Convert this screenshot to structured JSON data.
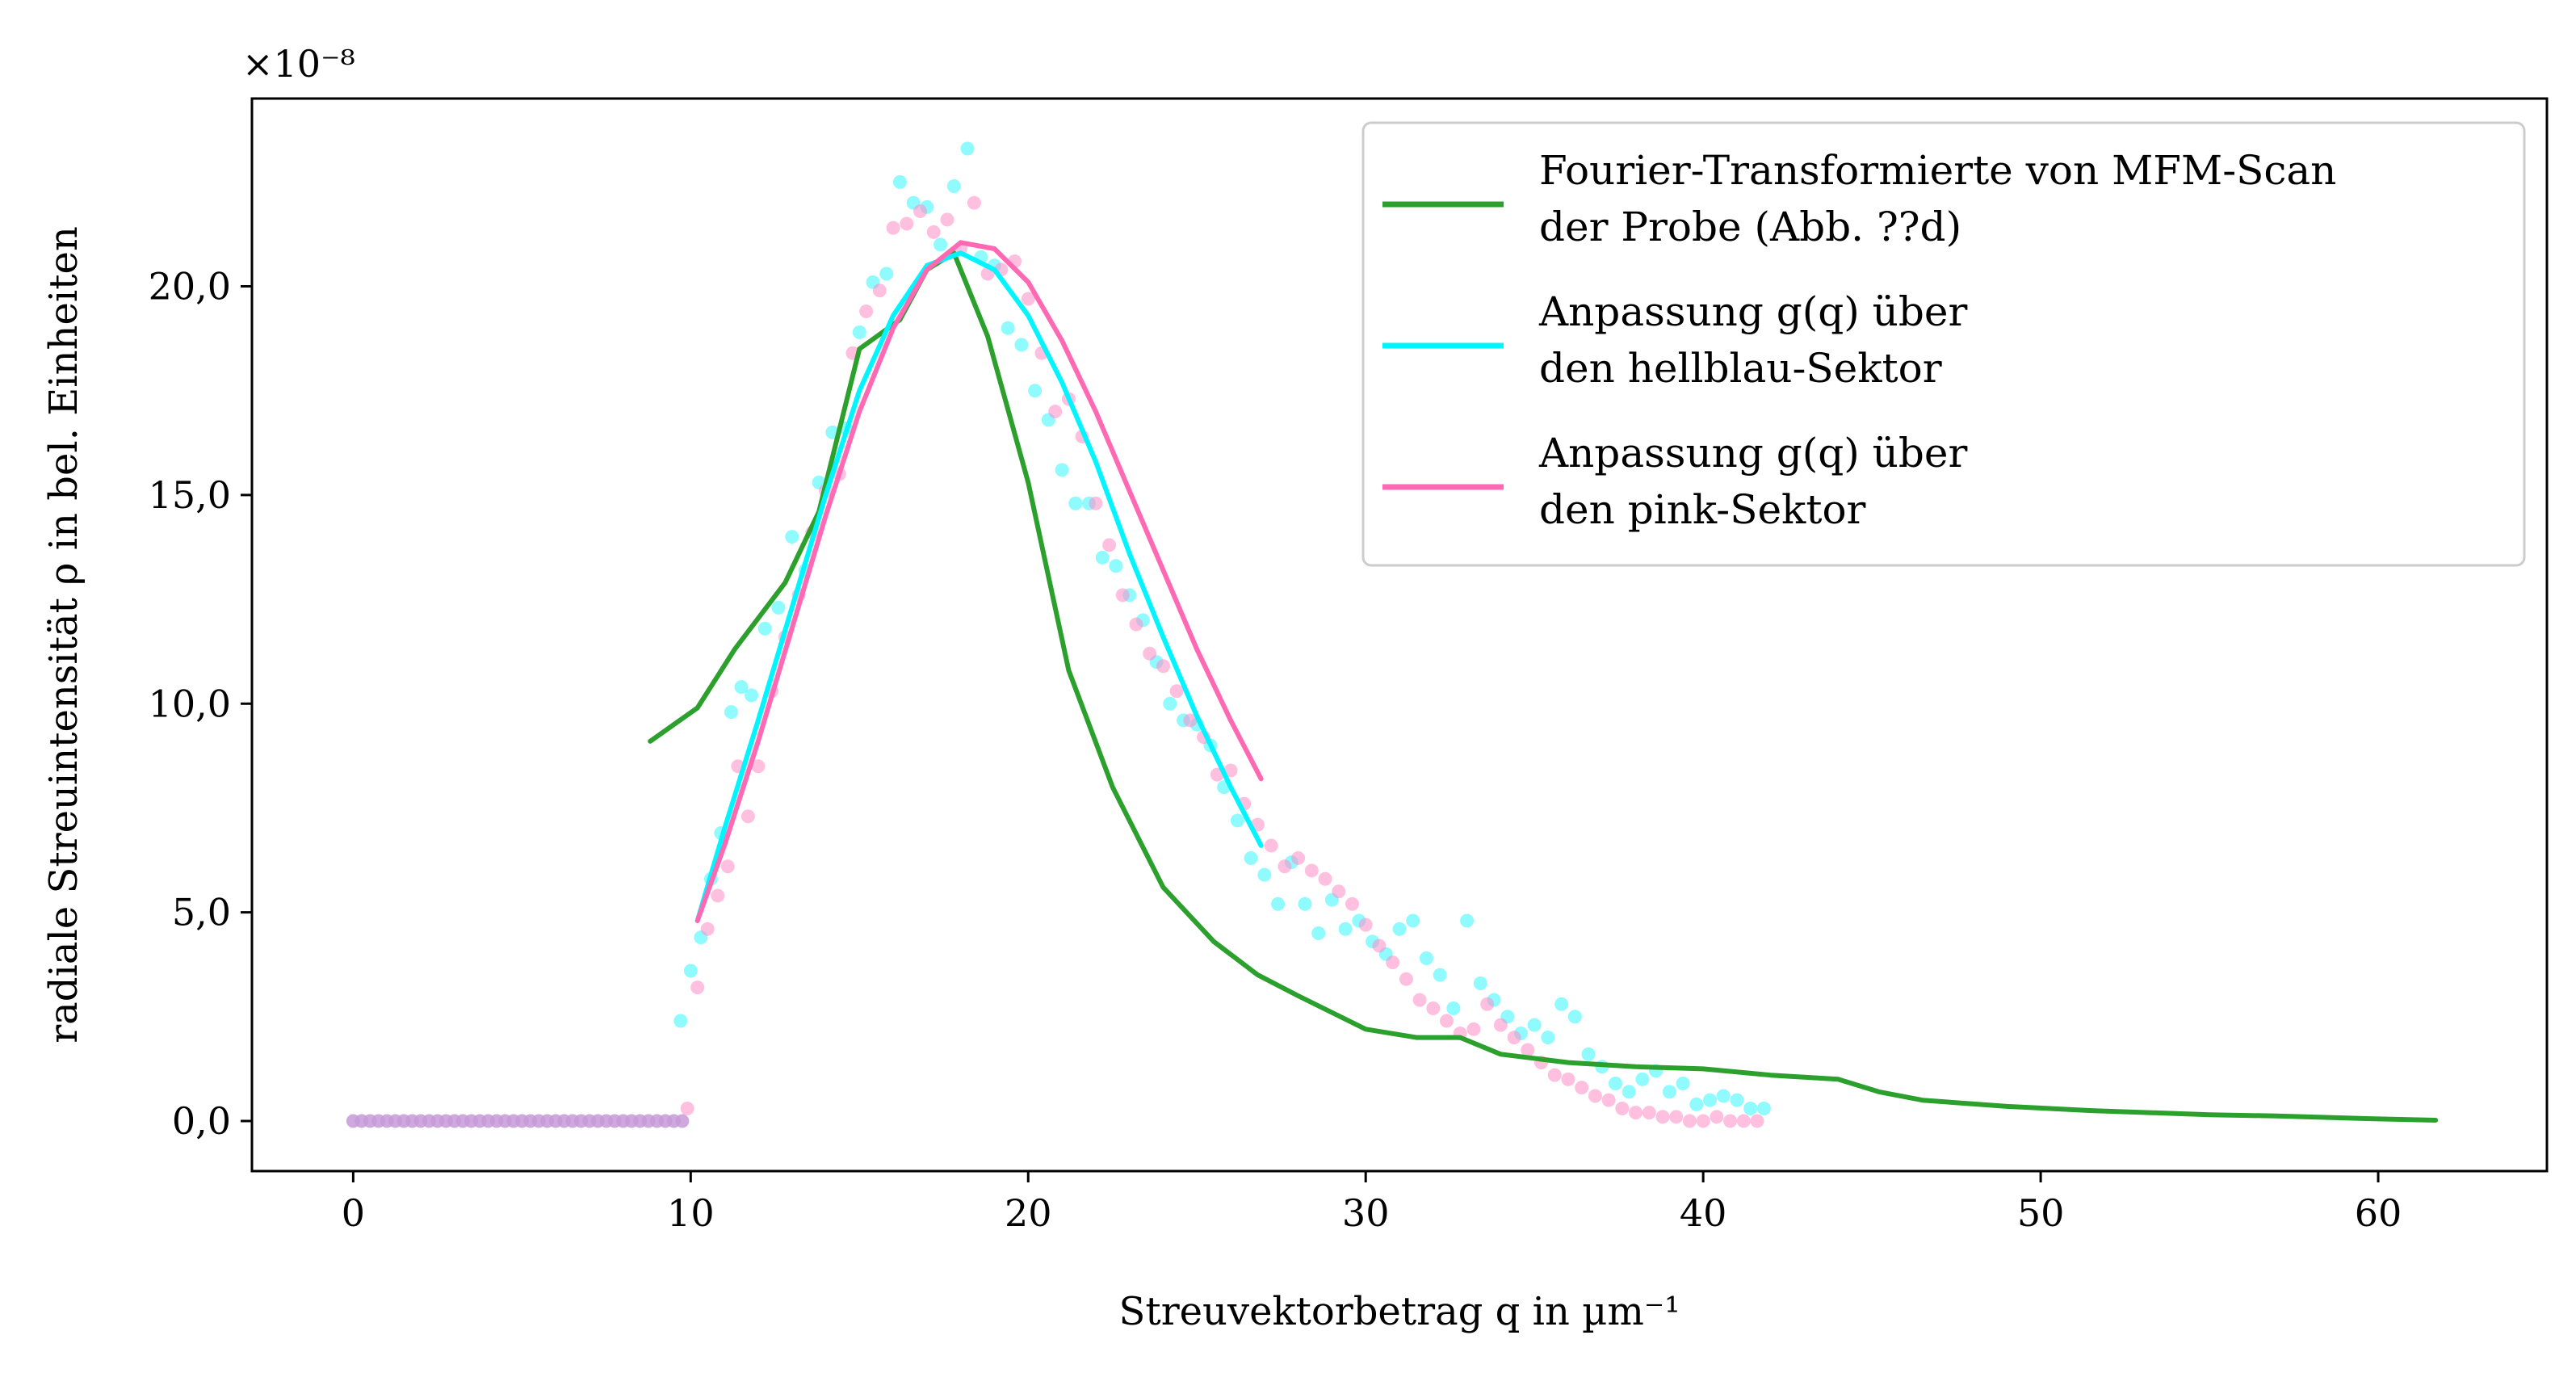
{
  "chart_data": {
    "type": "scatter",
    "xlabel": "Streuvektorbetrag q in µm⁻¹",
    "ylabel": "radiale Streuintensität ρ in bel. Einheiten",
    "y_multiplier_label": "×10⁻⁸",
    "xlim": [
      -3,
      65
    ],
    "ylim": [
      -1.2,
      24.5
    ],
    "x_ticks": [
      0,
      10,
      20,
      30,
      40,
      50,
      60
    ],
    "x_tick_labels": [
      "0",
      "10",
      "20",
      "30",
      "40",
      "50",
      "60"
    ],
    "y_ticks": [
      0,
      5,
      10,
      15,
      20
    ],
    "y_tick_labels": [
      "0,0",
      "5,0",
      "10,0",
      "15,0",
      "20,0"
    ],
    "legend_position": "top-right",
    "legend": [
      {
        "series": "fft",
        "lines": [
          "Fourier-Transformierte von MFM-Scan",
          "der Probe (Abb. ??d)"
        ]
      },
      {
        "series": "fit_blue",
        "lines": [
          "Anpassung g(q) über",
          "den hellblau-Sektor"
        ]
      },
      {
        "series": "fit_pink",
        "lines": [
          "Anpassung g(q) über",
          "den pink-Sektor"
        ]
      }
    ],
    "colors": {
      "fft": "#2ca02c",
      "fit_blue": "#00f5ff",
      "fit_pink": "#ff69b4",
      "data_blue": "#33f7ff",
      "data_pink": "#ff8cc6",
      "data_zero": "#c79ad8"
    },
    "series": [
      {
        "id": "fft",
        "kind": "line",
        "x": [
          8.8,
          10.2,
          11.3,
          12.8,
          13.8,
          15.0,
          16.2,
          17.0,
          17.8,
          18.8,
          20.0,
          21.2,
          22.5,
          24.0,
          25.5,
          26.8,
          28.0,
          30.0,
          31.5,
          32.8,
          34.0,
          36.0,
          38.0,
          40.0,
          42.0,
          44.0,
          45.2,
          46.5,
          49.0,
          51.5,
          55.0,
          57.0,
          60.0,
          61.7
        ],
        "y": [
          9.1,
          9.9,
          11.3,
          12.9,
          14.6,
          18.5,
          19.2,
          20.4,
          20.8,
          18.8,
          15.3,
          10.8,
          8.0,
          5.6,
          4.3,
          3.5,
          3.0,
          2.2,
          2.0,
          2.0,
          1.6,
          1.4,
          1.3,
          1.25,
          1.1,
          1.0,
          0.7,
          0.5,
          0.35,
          0.25,
          0.15,
          0.12,
          0.05,
          0.02
        ]
      },
      {
        "id": "fit_blue",
        "kind": "line",
        "x": [
          10.2,
          11.0,
          12.0,
          13.0,
          14.0,
          15.0,
          16.0,
          17.0,
          18.0,
          19.0,
          20.0,
          21.0,
          22.0,
          23.0,
          24.0,
          25.0,
          26.0,
          26.9
        ],
        "y": [
          4.8,
          7.0,
          9.6,
          12.3,
          15.0,
          17.5,
          19.3,
          20.5,
          20.8,
          20.4,
          19.3,
          17.7,
          15.8,
          13.6,
          11.6,
          9.7,
          8.0,
          6.6
        ]
      },
      {
        "id": "fit_pink",
        "kind": "line",
        "x": [
          10.2,
          11.0,
          12.0,
          13.0,
          14.0,
          15.0,
          16.0,
          17.0,
          18.0,
          19.0,
          20.0,
          21.0,
          22.0,
          23.0,
          24.0,
          25.0,
          26.0,
          26.9
        ],
        "y": [
          4.8,
          6.6,
          9.1,
          11.8,
          14.5,
          17.0,
          19.0,
          20.4,
          21.05,
          20.9,
          20.1,
          18.7,
          17.0,
          15.1,
          13.2,
          11.3,
          9.6,
          8.2
        ]
      },
      {
        "id": "data_zero",
        "kind": "scatter",
        "x": [
          0.0,
          0.25,
          0.5,
          0.75,
          1.0,
          1.25,
          1.5,
          1.75,
          2.0,
          2.25,
          2.5,
          2.75,
          3.0,
          3.25,
          3.5,
          3.75,
          4.0,
          4.25,
          4.5,
          4.75,
          5.0,
          5.25,
          5.5,
          5.75,
          6.0,
          6.25,
          6.5,
          6.75,
          7.0,
          7.25,
          7.5,
          7.75,
          8.0,
          8.25,
          8.5,
          8.75,
          9.0,
          9.25,
          9.5,
          9.75
        ],
        "y": [
          0,
          0,
          0,
          0,
          0,
          0,
          0,
          0,
          0,
          0,
          0,
          0,
          0,
          0,
          0,
          0,
          0,
          0,
          0,
          0,
          0,
          0,
          0,
          0,
          0,
          0,
          0,
          0,
          0,
          0,
          0,
          0,
          0,
          0,
          0,
          0,
          0,
          0,
          0,
          0
        ]
      },
      {
        "id": "data_blue",
        "kind": "scatter",
        "x": [
          9.7,
          10.0,
          10.3,
          10.6,
          10.9,
          11.2,
          11.5,
          11.8,
          12.2,
          12.6,
          13.0,
          13.4,
          13.8,
          14.2,
          14.6,
          15.0,
          15.4,
          15.8,
          16.2,
          16.6,
          17.0,
          17.4,
          17.8,
          18.2,
          18.6,
          19.0,
          19.4,
          19.8,
          20.2,
          20.6,
          21.0,
          21.4,
          21.8,
          22.2,
          22.6,
          23.0,
          23.4,
          23.8,
          24.2,
          24.6,
          25.0,
          25.4,
          25.8,
          26.2,
          26.6,
          27.0,
          27.4,
          27.8,
          28.2,
          28.6,
          29.0,
          29.4,
          29.8,
          30.2,
          30.6,
          31.0,
          31.4,
          31.8,
          32.2,
          32.6,
          33.0,
          33.4,
          33.8,
          34.2,
          34.6,
          35.0,
          35.4,
          35.8,
          36.2,
          36.6,
          37.0,
          37.4,
          37.8,
          38.2,
          38.6,
          39.0,
          39.4,
          39.8,
          40.2,
          40.6,
          41.0,
          41.4,
          41.8
        ],
        "y": [
          2.4,
          3.6,
          4.4,
          5.8,
          6.9,
          9.8,
          10.4,
          10.2,
          11.8,
          12.3,
          14.0,
          13.2,
          15.3,
          16.5,
          16.6,
          18.9,
          20.1,
          20.3,
          22.5,
          22.0,
          21.9,
          21.0,
          22.4,
          23.3,
          20.7,
          20.5,
          19.0,
          18.6,
          17.5,
          16.8,
          15.6,
          14.8,
          14.8,
          13.5,
          13.3,
          12.6,
          12.0,
          11.0,
          10.0,
          9.6,
          9.5,
          9.0,
          8.0,
          7.2,
          6.3,
          5.9,
          5.2,
          6.2,
          5.2,
          4.5,
          5.3,
          4.6,
          4.8,
          4.3,
          4.0,
          4.6,
          4.8,
          3.9,
          3.5,
          2.7,
          4.8,
          3.3,
          2.9,
          2.5,
          2.1,
          2.3,
          2.0,
          2.8,
          2.5,
          1.6,
          1.3,
          0.9,
          0.7,
          1.0,
          1.2,
          0.7,
          0.9,
          0.4,
          0.5,
          0.6,
          0.5,
          0.3,
          0.3
        ]
      },
      {
        "id": "data_pink",
        "kind": "scatter",
        "x": [
          9.9,
          10.2,
          10.5,
          10.8,
          11.1,
          11.4,
          11.7,
          12.0,
          12.4,
          12.8,
          13.2,
          13.6,
          14.0,
          14.4,
          14.8,
          15.2,
          15.6,
          16.0,
          16.4,
          16.8,
          17.2,
          17.6,
          18.0,
          18.4,
          18.8,
          19.2,
          19.6,
          20.0,
          20.4,
          20.8,
          21.2,
          21.6,
          22.0,
          22.4,
          22.8,
          23.2,
          23.6,
          24.0,
          24.4,
          24.8,
          25.2,
          25.6,
          26.0,
          26.4,
          26.8,
          27.2,
          27.6,
          28.0,
          28.4,
          28.8,
          29.2,
          29.6,
          30.0,
          30.4,
          30.8,
          31.2,
          31.6,
          32.0,
          32.4,
          32.8,
          33.2,
          33.6,
          34.0,
          34.4,
          34.8,
          35.2,
          35.6,
          36.0,
          36.4,
          36.8,
          37.2,
          37.6,
          38.0,
          38.4,
          38.8,
          39.2,
          39.6,
          40.0,
          40.4,
          40.8,
          41.2,
          41.6
        ],
        "y": [
          0.3,
          3.2,
          4.6,
          5.4,
          6.1,
          8.5,
          7.3,
          8.5,
          10.3,
          11.6,
          12.6,
          14.1,
          15.1,
          15.5,
          18.4,
          19.4,
          19.9,
          21.4,
          21.5,
          21.8,
          21.3,
          21.6,
          20.9,
          22.0,
          20.3,
          20.4,
          20.6,
          19.7,
          18.4,
          17.0,
          17.3,
          16.4,
          14.8,
          13.8,
          12.6,
          11.9,
          11.2,
          10.9,
          10.3,
          9.6,
          9.2,
          8.3,
          8.4,
          7.6,
          7.1,
          6.6,
          6.1,
          6.3,
          6.0,
          5.8,
          5.5,
          5.2,
          4.7,
          4.2,
          3.8,
          3.4,
          2.9,
          2.7,
          2.4,
          2.1,
          2.2,
          2.8,
          2.3,
          2.0,
          1.7,
          1.4,
          1.1,
          1.0,
          0.8,
          0.6,
          0.5,
          0.3,
          0.2,
          0.2,
          0.1,
          0.1,
          0.0,
          0.0,
          0.1,
          0.0,
          0.0,
          0.0
        ]
      }
    ]
  }
}
